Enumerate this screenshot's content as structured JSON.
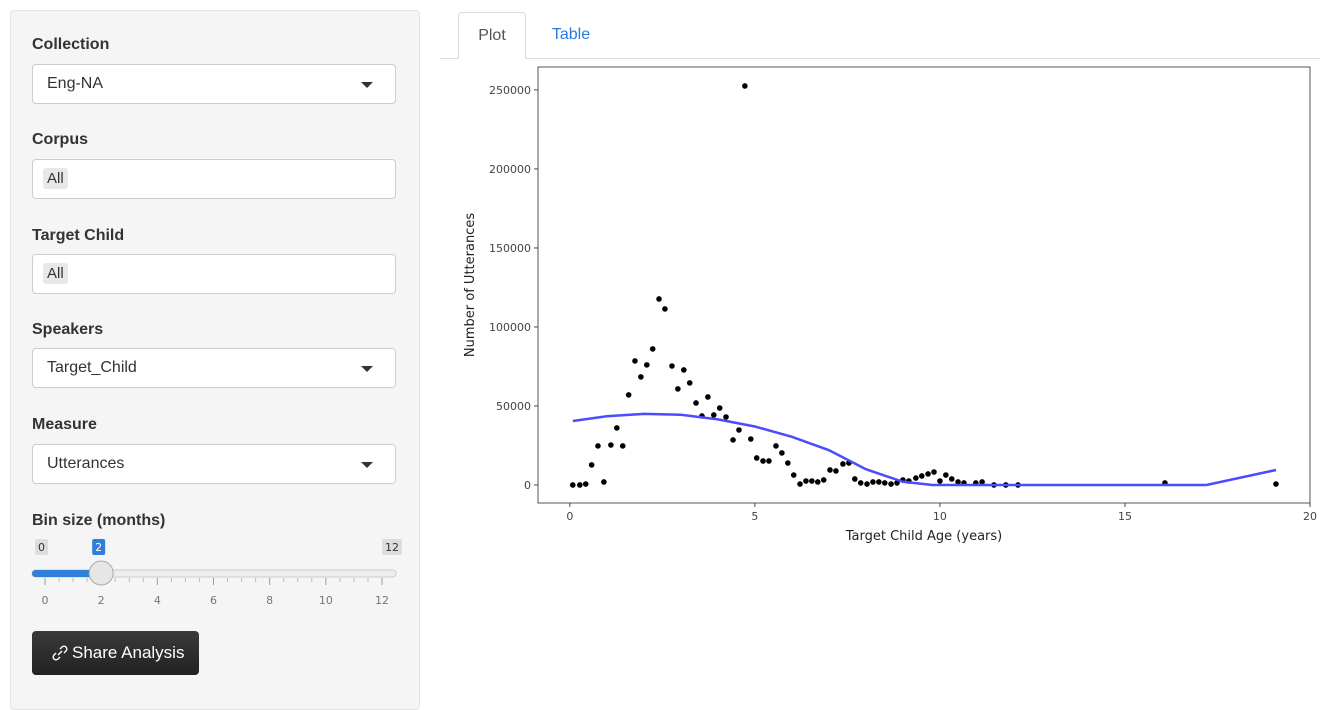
{
  "sidebar": {
    "collection": {
      "label": "Collection",
      "value": "Eng-NA"
    },
    "corpus": {
      "label": "Corpus",
      "value": "All"
    },
    "target_child": {
      "label": "Target Child",
      "value": "All"
    },
    "speakers": {
      "label": "Speakers",
      "value": "Target_Child"
    },
    "measure": {
      "label": "Measure",
      "value": "Utterances"
    },
    "bin_size": {
      "label": "Bin size (months)",
      "min": 0,
      "max": 12,
      "value": 2,
      "ticks": [
        0,
        2,
        4,
        6,
        8,
        10,
        12
      ]
    },
    "button": "Share Analysis"
  },
  "tabs": [
    "Plot",
    "Table"
  ],
  "chart_data": {
    "type": "scatter",
    "x_label": "Target Child Age (years)",
    "y_label": "Number of Utterances",
    "xlim": [
      -0.86,
      20
    ],
    "ylim": [
      -11400,
      264500
    ],
    "xticks": [
      0,
      5,
      10,
      15,
      20
    ],
    "yticks": [
      0,
      50000,
      100000,
      150000,
      200000,
      250000
    ],
    "grid": false,
    "series": [
      {
        "type": "scatter",
        "color": "#000000",
        "x": [
          0.08,
          0.27,
          0.43,
          0.59,
          0.76,
          0.92,
          1.11,
          1.27,
          1.43,
          1.59,
          1.76,
          1.92,
          2.08,
          2.24,
          2.41,
          2.57,
          2.76,
          2.92,
          3.08,
          3.24,
          3.41,
          3.57,
          3.73,
          3.89,
          4.05,
          4.22,
          4.41,
          4.57,
          4.73,
          4.89,
          5.05,
          5.22,
          5.38,
          5.57,
          5.73,
          5.89,
          6.05,
          6.22,
          6.38,
          6.54,
          6.7,
          6.86,
          7.03,
          7.19,
          7.38,
          7.54,
          7.7,
          7.86,
          8.03,
          8.19,
          8.35,
          8.51,
          8.68,
          8.84,
          9.0,
          9.16,
          9.35,
          9.51,
          9.68,
          9.84,
          10.0,
          10.16,
          10.32,
          10.49,
          10.65,
          10.97,
          11.14,
          11.46,
          11.78,
          12.11,
          16.08,
          19.08
        ],
        "y": [
          0,
          0,
          600,
          12700,
          24700,
          1900,
          25300,
          36100,
          24700,
          57000,
          78500,
          68400,
          76000,
          86100,
          117700,
          111400,
          75300,
          60800,
          72800,
          64600,
          51900,
          43700,
          55700,
          44300,
          48700,
          43000,
          28500,
          34800,
          252500,
          29100,
          17100,
          15200,
          15200,
          24700,
          20300,
          13900,
          6300,
          600,
          2500,
          2500,
          1900,
          3200,
          9500,
          8900,
          13300,
          13900,
          3800,
          1300,
          600,
          1900,
          1900,
          1300,
          600,
          1300,
          3200,
          2500,
          4400,
          5700,
          7000,
          8200,
          2500,
          6300,
          3800,
          1900,
          1300,
          1300,
          1900,
          0,
          0,
          0,
          1300,
          600
        ]
      },
      {
        "type": "line",
        "color": "#4b4bff",
        "x": [
          0.08,
          1,
          2,
          3,
          4,
          5,
          6,
          7,
          8,
          9,
          9.8,
          12,
          15,
          17.2,
          19.08
        ],
        "y": [
          40500,
          43500,
          45000,
          44500,
          41500,
          37000,
          30500,
          22000,
          10000,
          2000,
          0,
          0,
          0,
          0,
          9500
        ]
      }
    ]
  }
}
